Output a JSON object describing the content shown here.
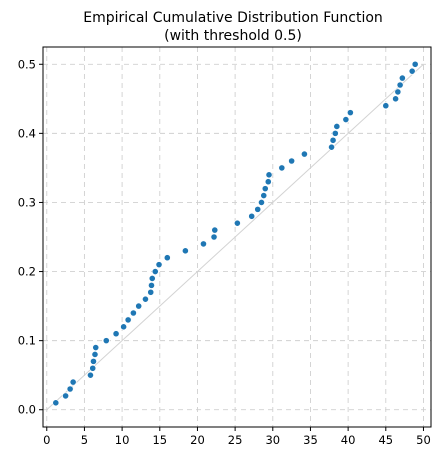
{
  "chart_data": {
    "type": "scatter",
    "title": "Empirical Cumulative Distribution Function",
    "subtitle": "(with threshold 0.5)",
    "xlabel": "",
    "ylabel": "",
    "xlim": [
      -0.5,
      51
    ],
    "ylim": [
      -0.025,
      0.525
    ],
    "xticks": [
      0,
      5,
      10,
      15,
      20,
      25,
      30,
      35,
      40,
      45,
      50
    ],
    "yticks": [
      0.0,
      0.1,
      0.2,
      0.3,
      0.4,
      0.5
    ],
    "grid": true,
    "legend": "none",
    "reference_line": {
      "x": [
        0,
        50
      ],
      "y": [
        0,
        0.5
      ],
      "color": "#d3d3d3"
    },
    "marker_color": "#1f77b4",
    "points": [
      [
        1.2,
        0.01
      ],
      [
        2.5,
        0.02
      ],
      [
        3.1,
        0.03
      ],
      [
        3.5,
        0.04
      ],
      [
        5.8,
        0.05
      ],
      [
        6.1,
        0.06
      ],
      [
        6.2,
        0.07
      ],
      [
        6.4,
        0.08
      ],
      [
        6.5,
        0.09
      ],
      [
        7.9,
        0.1
      ],
      [
        9.2,
        0.11
      ],
      [
        10.2,
        0.12
      ],
      [
        10.8,
        0.13
      ],
      [
        11.5,
        0.14
      ],
      [
        12.2,
        0.15
      ],
      [
        13.1,
        0.16
      ],
      [
        13.8,
        0.17
      ],
      [
        13.9,
        0.18
      ],
      [
        14.0,
        0.19
      ],
      [
        14.4,
        0.2
      ],
      [
        14.9,
        0.21
      ],
      [
        16.0,
        0.22
      ],
      [
        18.4,
        0.23
      ],
      [
        20.8,
        0.24
      ],
      [
        22.2,
        0.25
      ],
      [
        22.3,
        0.26
      ],
      [
        25.3,
        0.27
      ],
      [
        27.2,
        0.28
      ],
      [
        28.0,
        0.29
      ],
      [
        28.5,
        0.3
      ],
      [
        28.8,
        0.31
      ],
      [
        29.0,
        0.32
      ],
      [
        29.4,
        0.33
      ],
      [
        29.5,
        0.34
      ],
      [
        31.2,
        0.35
      ],
      [
        32.5,
        0.36
      ],
      [
        34.2,
        0.37
      ],
      [
        37.8,
        0.38
      ],
      [
        38.0,
        0.39
      ],
      [
        38.3,
        0.4
      ],
      [
        38.5,
        0.41
      ],
      [
        39.7,
        0.42
      ],
      [
        40.3,
        0.43
      ],
      [
        45.0,
        0.44
      ],
      [
        46.3,
        0.45
      ],
      [
        46.6,
        0.46
      ],
      [
        46.9,
        0.47
      ],
      [
        47.2,
        0.48
      ],
      [
        48.5,
        0.49
      ],
      [
        48.9,
        0.5
      ]
    ]
  }
}
